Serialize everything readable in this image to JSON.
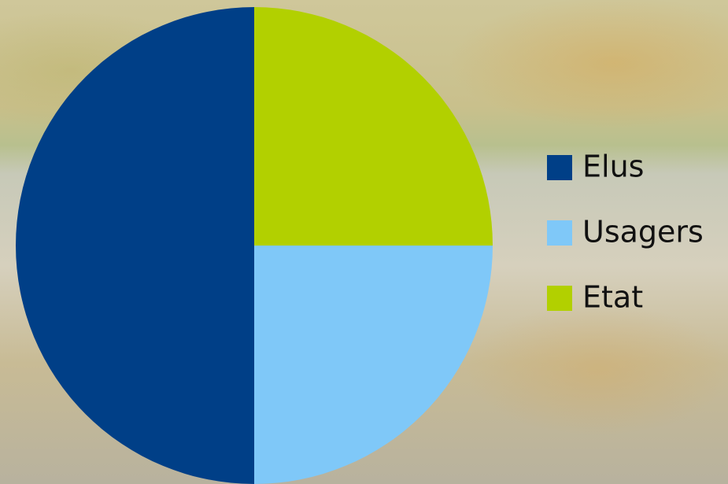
{
  "chart_data": {
    "type": "pie",
    "categories": [
      "Elus",
      "Usagers",
      "Etat"
    ],
    "values": [
      50,
      25,
      25
    ],
    "colors": [
      "#003f87",
      "#7fc8f8",
      "#b2d000"
    ],
    "legend": "right"
  }
}
